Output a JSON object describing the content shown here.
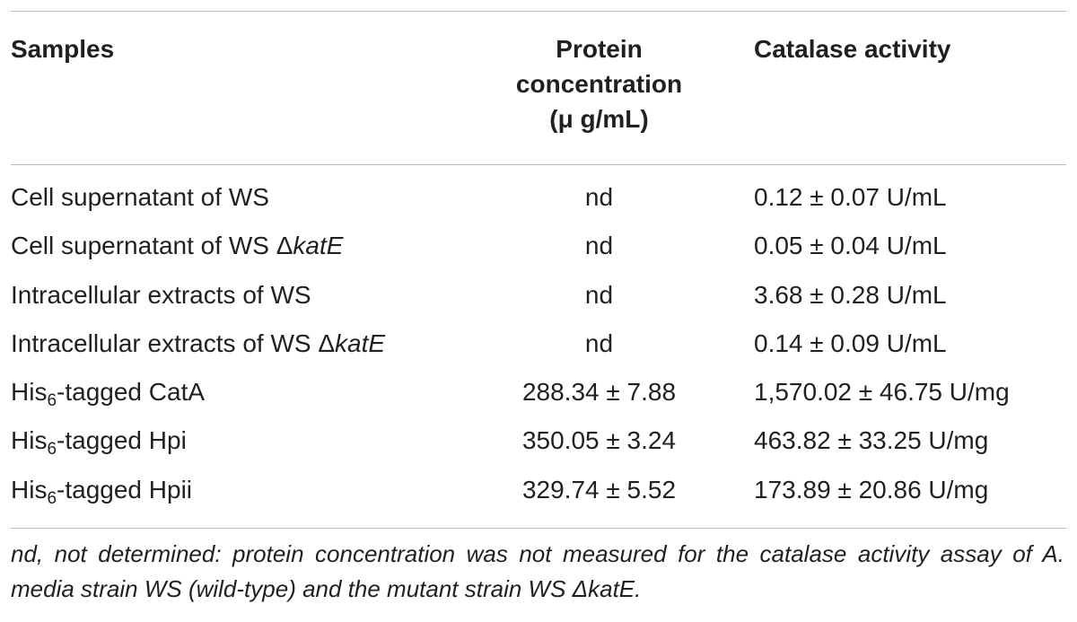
{
  "header": {
    "samples": "Samples",
    "protein": [
      "Protein",
      "concentration",
      "(μ g/mL)"
    ],
    "catalase": "Catalase activity"
  },
  "rows": [
    {
      "sample_pre": "Cell supernatant of WS",
      "sample_delta": "",
      "sample_italic": "",
      "sub": "",
      "sample_post": "",
      "protein": "nd",
      "activity": "0.12 ± 0.07 U/mL"
    },
    {
      "sample_pre": "Cell supernatant of WS ",
      "sample_delta": "Δ",
      "sample_italic": "katE",
      "sub": "",
      "sample_post": "",
      "protein": "nd",
      "activity": "0.05 ± 0.04 U/mL"
    },
    {
      "sample_pre": "Intracellular extracts of WS",
      "sample_delta": "",
      "sample_italic": "",
      "sub": "",
      "sample_post": "",
      "protein": "nd",
      "activity": "3.68 ± 0.28 U/mL"
    },
    {
      "sample_pre": "Intracellular extracts of WS ",
      "sample_delta": "Δ",
      "sample_italic": "katE",
      "sub": "",
      "sample_post": "",
      "protein": "nd",
      "activity": "0.14 ± 0.09 U/mL"
    },
    {
      "sample_pre": "His",
      "sample_delta": "",
      "sample_italic": "",
      "sub": "6",
      "sample_post": "-tagged CatA",
      "protein": "288.34 ± 7.88",
      "activity": "1,570.02 ± 46.75 U/mg"
    },
    {
      "sample_pre": "His",
      "sample_delta": "",
      "sample_italic": "",
      "sub": "6",
      "sample_post": "-tagged Hpi",
      "protein": "350.05 ± 3.24",
      "activity": "463.82 ± 33.25 U/mg"
    },
    {
      "sample_pre": "His",
      "sample_delta": "",
      "sample_italic": "",
      "sub": "6",
      "sample_post": "-tagged Hpii",
      "protein": "329.74 ± 5.52",
      "activity": "173.89 ± 20.86 U/mg"
    }
  ],
  "footnote": "nd, not determined: protein concentration was not measured for the catalase activity assay of A. media strain WS (wild-type) and the mutant strain WS ΔkatE."
}
